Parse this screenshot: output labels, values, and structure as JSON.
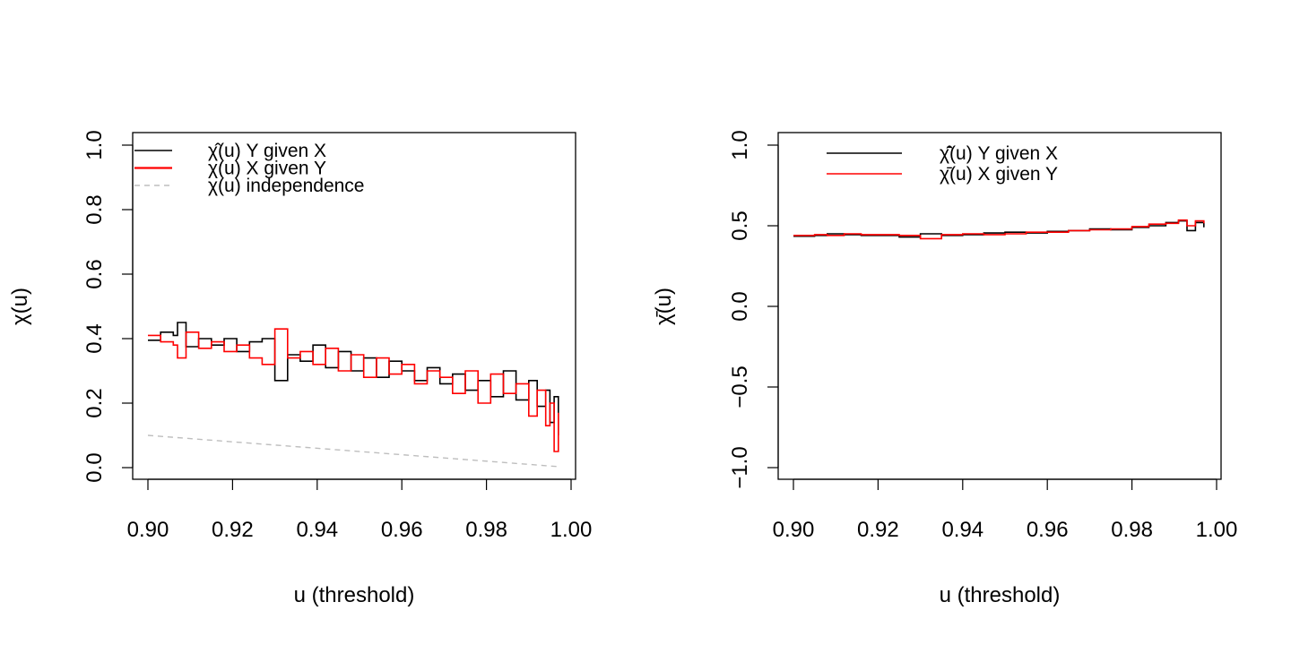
{
  "chart_data": [
    {
      "type": "line",
      "xlabel": "u (threshold)",
      "ylabel": "χ(u)",
      "xlim": [
        0.9,
        1.0
      ],
      "ylim": [
        0.0,
        1.0
      ],
      "xticks": [
        "0.90",
        "0.92",
        "0.94",
        "0.96",
        "0.98",
        "1.00"
      ],
      "yticks": [
        "0.0",
        "0.2",
        "0.4",
        "0.6",
        "0.8",
        "1.0"
      ],
      "legend_position": "top-left",
      "series": [
        {
          "name": "χ̂(u) Y given X",
          "color": "#000000",
          "x": [
            0.9,
            0.903,
            0.906,
            0.907,
            0.909,
            0.912,
            0.915,
            0.918,
            0.921,
            0.924,
            0.927,
            0.93,
            0.933,
            0.936,
            0.939,
            0.942,
            0.945,
            0.948,
            0.951,
            0.954,
            0.957,
            0.96,
            0.963,
            0.966,
            0.969,
            0.972,
            0.975,
            0.978,
            0.981,
            0.984,
            0.987,
            0.99,
            0.992,
            0.994,
            0.995,
            0.996,
            0.997
          ],
          "y": [
            0.395,
            0.42,
            0.41,
            0.45,
            0.375,
            0.4,
            0.38,
            0.4,
            0.36,
            0.39,
            0.4,
            0.27,
            0.35,
            0.33,
            0.38,
            0.31,
            0.36,
            0.3,
            0.34,
            0.28,
            0.33,
            0.3,
            0.27,
            0.31,
            0.26,
            0.29,
            0.24,
            0.27,
            0.22,
            0.3,
            0.21,
            0.27,
            0.19,
            0.24,
            0.14,
            0.22,
            0.1
          ]
        },
        {
          "name": "χ(u) X given Y",
          "color": "#ff0000",
          "x": [
            0.9,
            0.903,
            0.906,
            0.907,
            0.909,
            0.912,
            0.915,
            0.918,
            0.921,
            0.924,
            0.927,
            0.93,
            0.933,
            0.936,
            0.939,
            0.942,
            0.945,
            0.948,
            0.951,
            0.954,
            0.957,
            0.96,
            0.963,
            0.966,
            0.969,
            0.972,
            0.975,
            0.978,
            0.981,
            0.984,
            0.987,
            0.99,
            0.992,
            0.994,
            0.995,
            0.996,
            0.997
          ],
          "y": [
            0.41,
            0.39,
            0.38,
            0.34,
            0.42,
            0.37,
            0.39,
            0.36,
            0.38,
            0.34,
            0.32,
            0.43,
            0.34,
            0.36,
            0.32,
            0.37,
            0.3,
            0.35,
            0.28,
            0.34,
            0.29,
            0.32,
            0.26,
            0.3,
            0.28,
            0.23,
            0.3,
            0.2,
            0.29,
            0.23,
            0.26,
            0.16,
            0.24,
            0.13,
            0.2,
            0.05,
            0.17
          ]
        },
        {
          "name": "χ(u) independence",
          "color": "#bebebe",
          "dashed": true,
          "x": [
            0.9,
            0.997
          ],
          "y": [
            0.1,
            0.003
          ]
        }
      ]
    },
    {
      "type": "line",
      "xlabel": "u (threshold)",
      "ylabel": "χ̄(u)",
      "xlim": [
        0.9,
        1.0
      ],
      "ylim": [
        -1.0,
        1.0
      ],
      "xticks": [
        "0.90",
        "0.92",
        "0.94",
        "0.96",
        "0.98",
        "1.00"
      ],
      "yticks": [
        "−1.0",
        "−0.5",
        "0.0",
        "0.5",
        "1.0"
      ],
      "legend_position": "top-left",
      "series": [
        {
          "name": "χ̄̂(u) Y given X",
          "color": "#000000",
          "x": [
            0.9,
            0.905,
            0.908,
            0.912,
            0.916,
            0.92,
            0.925,
            0.93,
            0.935,
            0.94,
            0.945,
            0.95,
            0.955,
            0.96,
            0.965,
            0.97,
            0.975,
            0.98,
            0.984,
            0.988,
            0.991,
            0.993,
            0.995,
            0.997
          ],
          "y": [
            0.435,
            0.44,
            0.45,
            0.445,
            0.44,
            0.44,
            0.43,
            0.45,
            0.44,
            0.445,
            0.455,
            0.46,
            0.455,
            0.465,
            0.47,
            0.48,
            0.475,
            0.49,
            0.5,
            0.52,
            0.53,
            0.47,
            0.52,
            0.49
          ]
        },
        {
          "name": "χ̄(u) X given Y",
          "color": "#ff0000",
          "x": [
            0.9,
            0.905,
            0.908,
            0.912,
            0.916,
            0.92,
            0.925,
            0.93,
            0.935,
            0.94,
            0.945,
            0.95,
            0.955,
            0.96,
            0.965,
            0.97,
            0.975,
            0.98,
            0.984,
            0.988,
            0.991,
            0.993,
            0.995,
            0.997
          ],
          "y": [
            0.44,
            0.445,
            0.44,
            0.45,
            0.445,
            0.445,
            0.44,
            0.42,
            0.445,
            0.45,
            0.445,
            0.45,
            0.46,
            0.46,
            0.47,
            0.475,
            0.48,
            0.495,
            0.51,
            0.515,
            0.535,
            0.5,
            0.53,
            0.515
          ]
        }
      ]
    }
  ]
}
